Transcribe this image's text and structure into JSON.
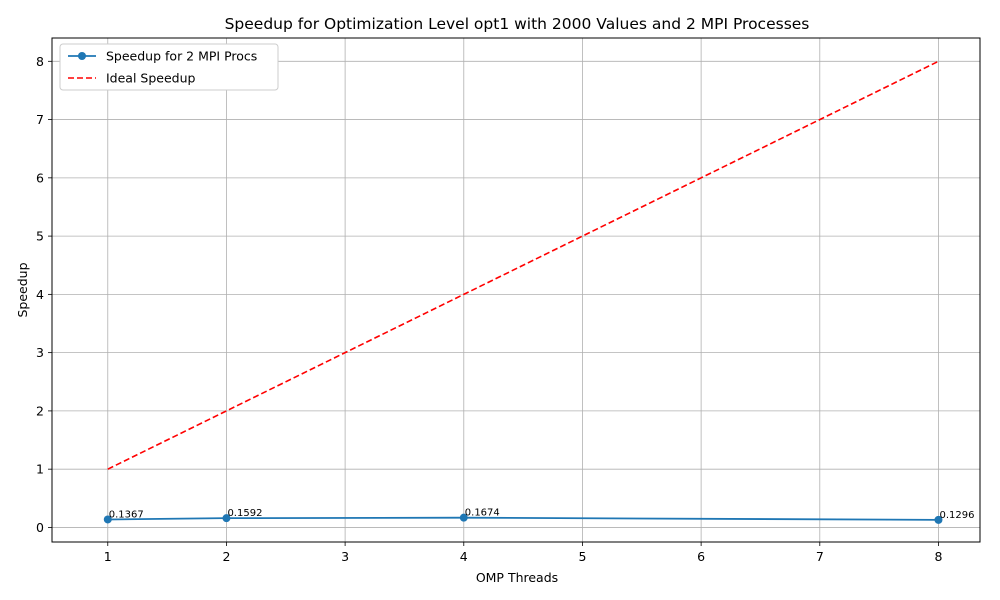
{
  "chart_data": {
    "type": "line",
    "title": "Speedup for Optimization Level opt1 with 2000 Values and 2 MPI Processes",
    "xlabel": "OMP Threads",
    "ylabel": "Speedup",
    "xlim": [
      0.53,
      8.35
    ],
    "ylim": [
      -0.25,
      8.4
    ],
    "x_ticks": [
      1,
      2,
      3,
      4,
      5,
      6,
      7,
      8
    ],
    "y_ticks": [
      0,
      1,
      2,
      3,
      4,
      5,
      6,
      7,
      8
    ],
    "grid": true,
    "legend_position": "top-left",
    "series": [
      {
        "name": "Speedup for 2 MPI Procs",
        "x": [
          1,
          2,
          4,
          8
        ],
        "values": [
          0.1367,
          0.1592,
          0.1674,
          0.1296
        ],
        "data_labels": [
          "0.1367",
          "0.1592",
          "0.1674",
          "0.1296"
        ],
        "color": "#1f77b4",
        "style": "solid",
        "marker": "circle"
      },
      {
        "name": "Ideal Speedup",
        "x": [
          1,
          2,
          4,
          8
        ],
        "values": [
          1,
          2,
          4,
          8
        ],
        "color": "#ff0000",
        "style": "dashed",
        "marker": "none"
      }
    ]
  }
}
